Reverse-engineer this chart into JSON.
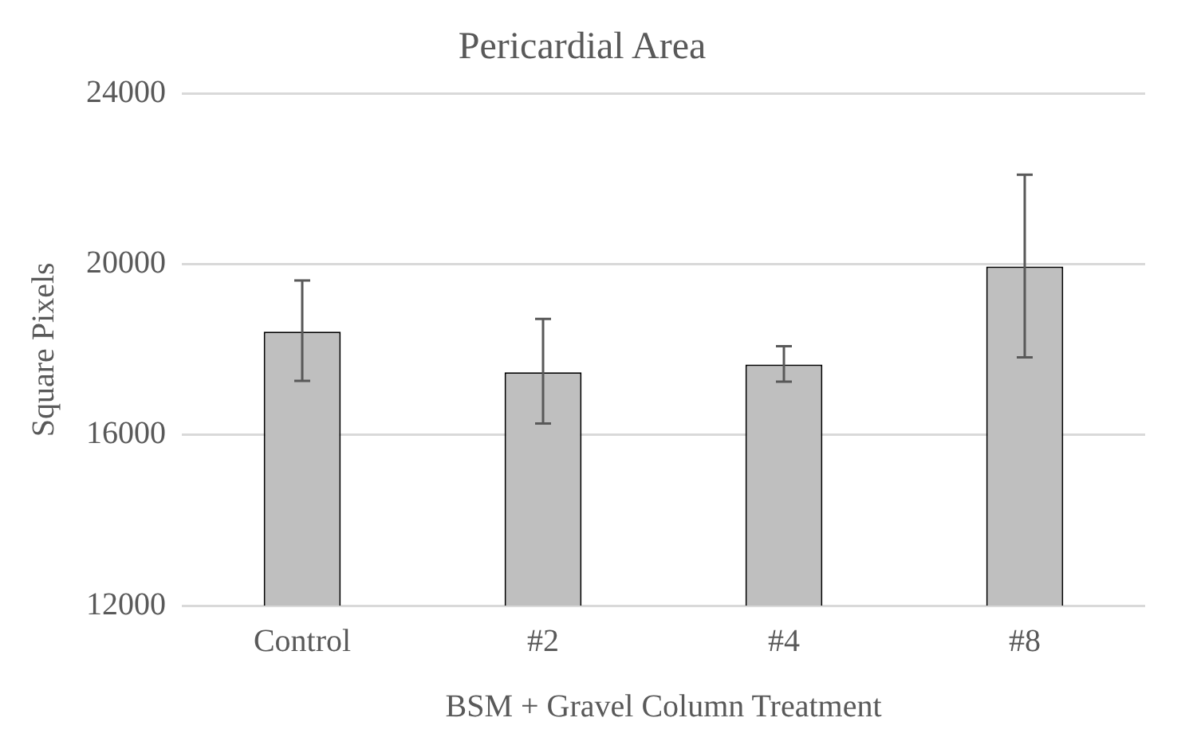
{
  "chart_data": {
    "type": "bar",
    "title": "Pericardial Area",
    "xlabel": "BSM + Gravel Column Treatment",
    "ylabel": "Square Pixels",
    "categories": [
      "Control",
      "#2",
      "#4",
      "#8"
    ],
    "values": [
      18420,
      17470,
      17650,
      19950
    ],
    "errors": [
      [
        17270,
        19620
      ],
      [
        16270,
        18720
      ],
      [
        17250,
        18080
      ],
      [
        17820,
        22100
      ]
    ],
    "color": "#bfbfbf",
    "ylim": [
      12000,
      24000
    ],
    "yticks": [
      12000,
      16000,
      20000,
      24000
    ],
    "grid": "y",
    "legend": false
  }
}
